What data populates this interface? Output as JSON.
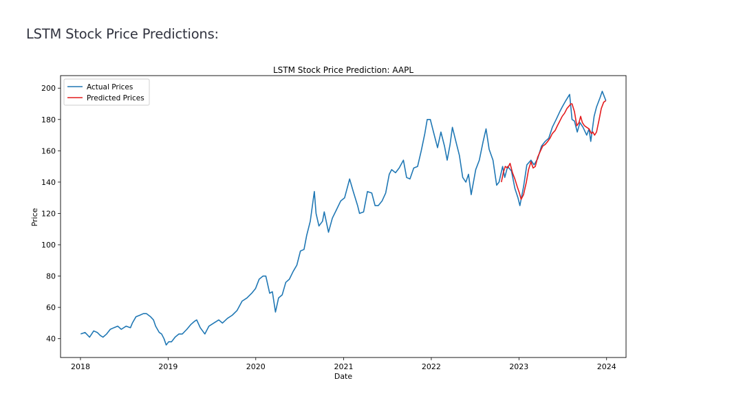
{
  "page": {
    "heading": "LSTM Stock Price Predictions:"
  },
  "chart_data": {
    "type": "line",
    "title": "LSTM Stock Price Prediction: AAPL",
    "xlabel": "Date",
    "ylabel": "Price",
    "xlim": [
      "2017-10-10",
      "2024-03-22"
    ],
    "ylim": [
      28,
      208
    ],
    "xticks": [
      {
        "label": "2018",
        "value": "2018-01-01"
      },
      {
        "label": "2019",
        "value": "2019-01-01"
      },
      {
        "label": "2020",
        "value": "2020-01-01"
      },
      {
        "label": "2021",
        "value": "2021-01-01"
      },
      {
        "label": "2022",
        "value": "2022-01-01"
      },
      {
        "label": "2023",
        "value": "2023-01-01"
      },
      {
        "label": "2024",
        "value": "2024-01-01"
      }
    ],
    "yticks": [
      40,
      60,
      80,
      100,
      120,
      140,
      160,
      180,
      200
    ],
    "grid": false,
    "legend": "top-left",
    "series": [
      {
        "name": "Actual Prices",
        "color": "#1f77b4",
        "x": [
          "2018-01-02",
          "2018-01-20",
          "2018-02-08",
          "2018-02-25",
          "2018-03-12",
          "2018-03-25",
          "2018-04-05",
          "2018-04-20",
          "2018-05-05",
          "2018-05-20",
          "2018-06-05",
          "2018-06-20",
          "2018-07-10",
          "2018-07-28",
          "2018-08-05",
          "2018-08-20",
          "2018-09-05",
          "2018-09-20",
          "2018-10-03",
          "2018-10-20",
          "2018-11-01",
          "2018-11-10",
          "2018-11-25",
          "2018-12-05",
          "2018-12-15",
          "2018-12-24",
          "2019-01-03",
          "2019-01-15",
          "2019-01-30",
          "2019-02-15",
          "2019-03-01",
          "2019-03-20",
          "2019-04-05",
          "2019-04-20",
          "2019-04-30",
          "2019-05-15",
          "2019-06-03",
          "2019-06-20",
          "2019-07-10",
          "2019-07-31",
          "2019-08-15",
          "2019-09-05",
          "2019-09-25",
          "2019-10-15",
          "2019-11-05",
          "2019-11-25",
          "2019-12-15",
          "2019-12-31",
          "2020-01-15",
          "2020-01-31",
          "2020-02-12",
          "2020-02-28",
          "2020-03-10",
          "2020-03-23",
          "2020-04-05",
          "2020-04-20",
          "2020-05-05",
          "2020-05-20",
          "2020-06-05",
          "2020-06-20",
          "2020-07-05",
          "2020-07-20",
          "2020-07-31",
          "2020-08-15",
          "2020-09-01",
          "2020-09-08",
          "2020-09-20",
          "2020-10-05",
          "2020-10-12",
          "2020-10-30",
          "2020-11-15",
          "2020-12-01",
          "2020-12-20",
          "2021-01-05",
          "2021-01-26",
          "2021-02-10",
          "2021-02-28",
          "2021-03-08",
          "2021-03-25",
          "2021-04-10",
          "2021-04-28",
          "2021-05-12",
          "2021-05-25",
          "2021-06-10",
          "2021-06-25",
          "2021-07-10",
          "2021-07-20",
          "2021-08-05",
          "2021-08-20",
          "2021-09-07",
          "2021-09-20",
          "2021-10-04",
          "2021-10-20",
          "2021-11-05",
          "2021-11-20",
          "2021-12-05",
          "2021-12-15",
          "2021-12-28",
          "2022-01-10",
          "2022-01-27",
          "2022-02-10",
          "2022-02-25",
          "2022-03-08",
          "2022-03-20",
          "2022-03-30",
          "2022-04-15",
          "2022-04-28",
          "2022-05-12",
          "2022-05-25",
          "2022-06-05",
          "2022-06-16",
          "2022-07-05",
          "2022-07-20",
          "2022-08-05",
          "2022-08-17",
          "2022-08-30",
          "2022-09-15",
          "2022-09-30",
          "2022-10-10",
          "2022-10-25",
          "2022-11-03",
          "2022-11-15",
          "2022-12-01",
          "2022-12-15",
          "2022-12-28",
          "2023-01-05",
          "2023-01-20",
          "2023-02-03",
          "2023-02-20",
          "2023-03-05",
          "2023-03-20",
          "2023-04-05",
          "2023-04-20",
          "2023-05-05",
          "2023-05-20",
          "2023-06-05",
          "2023-06-20",
          "2023-06-30",
          "2023-07-15",
          "2023-07-31",
          "2023-08-10",
          "2023-08-20",
          "2023-09-01",
          "2023-09-12",
          "2023-09-25",
          "2023-10-10",
          "2023-10-20",
          "2023-10-27",
          "2023-11-10",
          "2023-11-20",
          "2023-12-05",
          "2023-12-14",
          "2023-12-29"
        ],
        "y": [
          43,
          44,
          41,
          45,
          44,
          42,
          41,
          43,
          46,
          47,
          48,
          46,
          48,
          47,
          50,
          54,
          55,
          56,
          56,
          54,
          52,
          48,
          44,
          43,
          40,
          36,
          38,
          38,
          41,
          43,
          43,
          46,
          49,
          51,
          52,
          47,
          43,
          48,
          50,
          52,
          50,
          53,
          55,
          58,
          64,
          66,
          69,
          72,
          78,
          80,
          80,
          69,
          70,
          57,
          66,
          68,
          76,
          78,
          83,
          87,
          96,
          97,
          106,
          115,
          134,
          120,
          112,
          115,
          121,
          108,
          117,
          122,
          128,
          130,
          142,
          134,
          125,
          120,
          121,
          134,
          133,
          125,
          125,
          128,
          133,
          145,
          148,
          146,
          149,
          154,
          143,
          142,
          149,
          150,
          160,
          171,
          180,
          180,
          172,
          162,
          172,
          163,
          154,
          164,
          175,
          165,
          157,
          143,
          140,
          145,
          132,
          148,
          154,
          166,
          174,
          161,
          154,
          138,
          140,
          150,
          143,
          150,
          147,
          136,
          130,
          125,
          137,
          151,
          154,
          151,
          155,
          163,
          166,
          168,
          175,
          180,
          185,
          188,
          192,
          196,
          180,
          179,
          172,
          178,
          175,
          170,
          174,
          166,
          182,
          188,
          194,
          198,
          192
        ]
      },
      {
        "name": "Predicted Prices",
        "color": "#e31a1c",
        "x": [
          "2022-10-20",
          "2022-10-28",
          "2022-11-05",
          "2022-11-15",
          "2022-11-25",
          "2022-12-05",
          "2022-12-15",
          "2022-12-25",
          "2023-01-03",
          "2023-01-10",
          "2023-01-20",
          "2023-02-01",
          "2023-02-10",
          "2023-02-20",
          "2023-03-01",
          "2023-03-10",
          "2023-03-20",
          "2023-04-01",
          "2023-04-10",
          "2023-04-20",
          "2023-05-01",
          "2023-05-10",
          "2023-05-20",
          "2023-06-01",
          "2023-06-10",
          "2023-06-20",
          "2023-06-30",
          "2023-07-10",
          "2023-07-20",
          "2023-07-31",
          "2023-08-05",
          "2023-08-10",
          "2023-08-20",
          "2023-08-30",
          "2023-09-08",
          "2023-09-15",
          "2023-09-22",
          "2023-10-01",
          "2023-10-10",
          "2023-10-20",
          "2023-10-30",
          "2023-11-05",
          "2023-11-12",
          "2023-11-20",
          "2023-12-01",
          "2023-12-10",
          "2023-12-20",
          "2023-12-29"
        ],
        "y": [
          140,
          146,
          150,
          149,
          152,
          146,
          142,
          137,
          133,
          129,
          132,
          140,
          148,
          153,
          149,
          150,
          156,
          160,
          163,
          164,
          166,
          168,
          171,
          173,
          176,
          179,
          182,
          184,
          187,
          189,
          190,
          190,
          185,
          176,
          178,
          182,
          178,
          176,
          175,
          174,
          171,
          172,
          170,
          172,
          180,
          187,
          191,
          192
        ]
      }
    ]
  }
}
